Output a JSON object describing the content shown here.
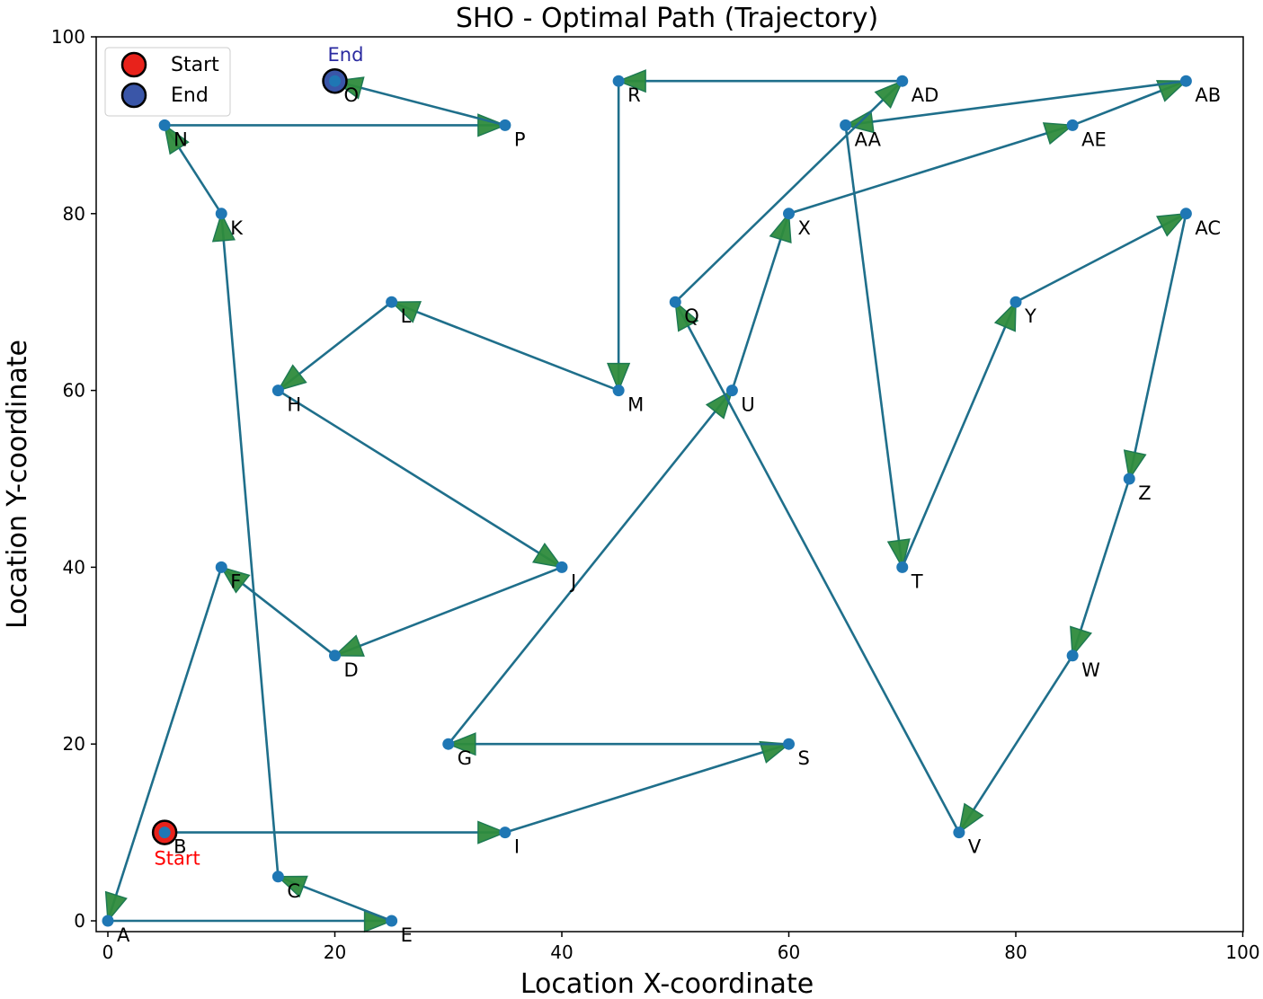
{
  "chart_data": {
    "type": "line",
    "title": "SHO - Optimal Path (Trajectory)",
    "xlabel": "Location X-coordinate",
    "ylabel": "Location Y-coordinate",
    "xlim": [
      -1,
      100
    ],
    "ylim": [
      -1,
      100
    ],
    "xticks": [
      0,
      20,
      40,
      60,
      80,
      100
    ],
    "yticks": [
      0,
      20,
      40,
      60,
      80,
      100
    ],
    "grid": false,
    "legend_position": "top-left",
    "legend": [
      {
        "label": "Start",
        "color": "#e8221b"
      },
      {
        "label": "End",
        "color": "#3a56a8"
      }
    ],
    "colors": {
      "path_line": "#1f6f8b",
      "arrow_fill": "#2e8b3c",
      "arrow_edge": "#1d7a52",
      "point": "#1f77b4",
      "start_marker": "#e8221b",
      "end_marker": "#3a56a8",
      "start_text": "#ff0000",
      "end_text": "#2a2aa0"
    },
    "points": [
      {
        "label": "A",
        "x": 0,
        "y": 0
      },
      {
        "label": "B",
        "x": 5,
        "y": 10
      },
      {
        "label": "C",
        "x": 15,
        "y": 5
      },
      {
        "label": "D",
        "x": 20,
        "y": 30
      },
      {
        "label": "E",
        "x": 25,
        "y": 0
      },
      {
        "label": "F",
        "x": 10,
        "y": 40
      },
      {
        "label": "G",
        "x": 30,
        "y": 20
      },
      {
        "label": "H",
        "x": 15,
        "y": 60
      },
      {
        "label": "I",
        "x": 35,
        "y": 10
      },
      {
        "label": "J",
        "x": 40,
        "y": 40
      },
      {
        "label": "K",
        "x": 10,
        "y": 80
      },
      {
        "label": "L",
        "x": 25,
        "y": 70
      },
      {
        "label": "M",
        "x": 45,
        "y": 60
      },
      {
        "label": "N",
        "x": 5,
        "y": 90
      },
      {
        "label": "O",
        "x": 20,
        "y": 95
      },
      {
        "label": "P",
        "x": 35,
        "y": 90
      },
      {
        "label": "Q",
        "x": 50,
        "y": 70
      },
      {
        "label": "R",
        "x": 45,
        "y": 95
      },
      {
        "label": "S",
        "x": 60,
        "y": 20
      },
      {
        "label": "T",
        "x": 70,
        "y": 40
      },
      {
        "label": "U",
        "x": 55,
        "y": 60
      },
      {
        "label": "V",
        "x": 75,
        "y": 10
      },
      {
        "label": "W",
        "x": 85,
        "y": 30
      },
      {
        "label": "X",
        "x": 60,
        "y": 80
      },
      {
        "label": "Y",
        "x": 80,
        "y": 70
      },
      {
        "label": "Z",
        "x": 90,
        "y": 50
      },
      {
        "label": "AA",
        "x": 65,
        "y": 90
      },
      {
        "label": "AB",
        "x": 95,
        "y": 95
      },
      {
        "label": "AC",
        "x": 95,
        "y": 80
      },
      {
        "label": "AD",
        "x": 70,
        "y": 95
      },
      {
        "label": "AE",
        "x": 85,
        "y": 90
      }
    ],
    "route": [
      "B",
      "I",
      "S",
      "G",
      "U",
      "X",
      "AE",
      "AB",
      "AA",
      "T",
      "Y",
      "AC",
      "Z",
      "W",
      "V",
      "Q",
      "AD",
      "R",
      "M",
      "L",
      "H",
      "J",
      "D",
      "F",
      "A",
      "E",
      "C",
      "K",
      "N",
      "P",
      "O"
    ],
    "start": {
      "label": "Start",
      "point": "B"
    },
    "end": {
      "label": "End",
      "point": "O"
    }
  }
}
